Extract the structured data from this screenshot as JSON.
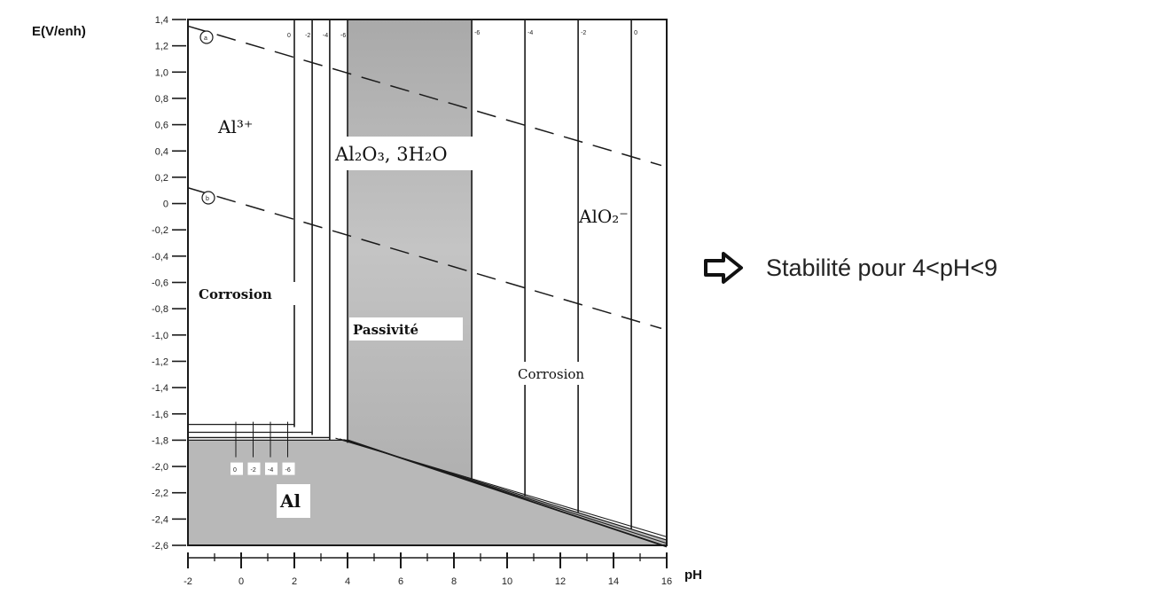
{
  "chart_data": {
    "type": "diagram",
    "ylabel": "E(V/enh)",
    "xlabel": "pH",
    "xlim": [
      -2,
      16
    ],
    "ylim": [
      -2.6,
      1.4
    ],
    "xticks": [
      "-2",
      "0",
      "2",
      "4",
      "6",
      "8",
      "10",
      "12",
      "14",
      "16"
    ],
    "yticks": [
      "1,4",
      "1,2",
      "1,0",
      "0,8",
      "0,6",
      "0,4",
      "0,2",
      "0",
      "-0,2",
      "-0,4",
      "-0,6",
      "-0,8",
      "-1,0",
      "-1,2",
      "-1,4",
      "-1,6",
      "-1,8",
      "-2,0",
      "-2,2",
      "-2,4",
      "-2,6"
    ],
    "regions": {
      "al3": "Al³⁺",
      "oxide": "Al₂O₃, 3H₂O",
      "aluminate": "AlO₂⁻",
      "metal": "Al",
      "corrosion_left": "Corrosion",
      "passivity": "Passivité",
      "corrosion_right": "Corrosion"
    },
    "markers": {
      "a": "a",
      "b": "b"
    },
    "lines": {
      "water_a": {
        "x": [
          -2,
          16
        ],
        "y": [
          1.35,
          0.29
        ]
      },
      "water_b": {
        "x": [
          -2,
          16
        ],
        "y": [
          0.12,
          -0.95
        ]
      },
      "boundary_al3_oxide_ph": [
        2.0,
        2.67,
        3.33,
        4.0
      ],
      "boundary_oxide_aluminate_ph": [
        8.67,
        10.67,
        12.67,
        14.67
      ],
      "metal_al3_E": [
        -1.68,
        -1.74,
        -1.78,
        -1.8
      ],
      "metal_oxide_line": {
        "x": [
          4,
          16
        ],
        "y": [
          -1.8,
          -2.56
        ]
      },
      "concentration_labels_left": [
        "0",
        "-2",
        "-4",
        "-6"
      ],
      "concentration_labels_right": [
        "-6",
        "-4",
        "-2",
        "0"
      ],
      "concentration_labels_bottom": [
        "0",
        "-2",
        "-4",
        "-6"
      ]
    }
  },
  "note": {
    "text": "Stabilité pour 4<pH<9",
    "arrow_icon": "outline-right-arrow"
  },
  "colors": {
    "domain_fill": "#b5b5b5",
    "oxide_fill": "#adadad",
    "line": "#1a1a1a"
  }
}
